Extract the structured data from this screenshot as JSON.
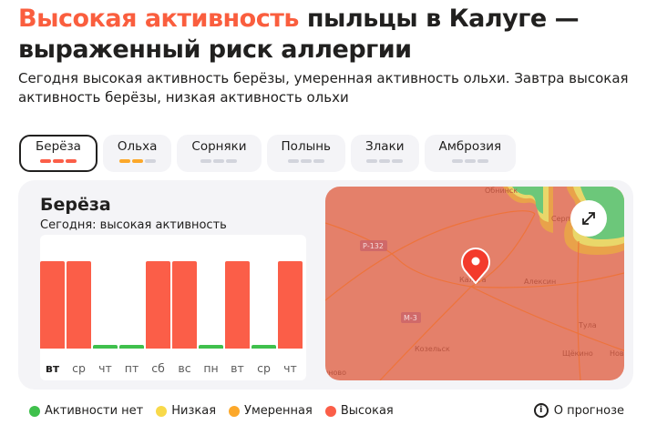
{
  "header": {
    "title_accent": "Высокая активность",
    "title_rest": " пыльцы в Калуге — выраженный риск аллергии",
    "subtitle": "Сегодня высокая активность берёзы, умеренная активность ольхи. Завтра высокая активность берёзы, низкая активность ольхи"
  },
  "colors": {
    "none": "#3fc04c",
    "low": "#f8d94a",
    "moderate": "#fca82a",
    "high": "#fb5e48",
    "empty": "#d2d4dc"
  },
  "tabs": [
    {
      "label": "Берёза",
      "level": 3,
      "color": "high",
      "active": true
    },
    {
      "label": "Ольха",
      "level": 2,
      "color": "moderate"
    },
    {
      "label": "Сорняки",
      "level": 0
    },
    {
      "label": "Полынь",
      "level": 0
    },
    {
      "label": "Злаки",
      "level": 0
    },
    {
      "label": "Амброзия",
      "level": 0
    }
  ],
  "card": {
    "title": "Берёза",
    "status": "Сегодня: высокая активность"
  },
  "chart_data": {
    "type": "bar",
    "categories": [
      "вт",
      "ср",
      "чт",
      "пт",
      "сб",
      "вс",
      "пн",
      "вт",
      "ср",
      "чт"
    ],
    "levels": [
      "high",
      "high",
      "none",
      "none",
      "high",
      "high",
      "none",
      "high",
      "none",
      "high"
    ]
  },
  "map": {
    "labels": [
      "Обнинск",
      "Серп",
      "Р-132",
      "Калуга",
      "Алексин",
      "М-3",
      "Тула",
      "Козельск",
      "Щёкино",
      "Нов",
      "нново"
    ],
    "expand_icon": "expand-icon"
  },
  "legend": [
    {
      "label": "Активности нет",
      "color": "none"
    },
    {
      "label": "Низкая",
      "color": "low"
    },
    {
      "label": "Умеренная",
      "color": "moderate"
    },
    {
      "label": "Высокая",
      "color": "high"
    }
  ],
  "about": "О прогнозе"
}
